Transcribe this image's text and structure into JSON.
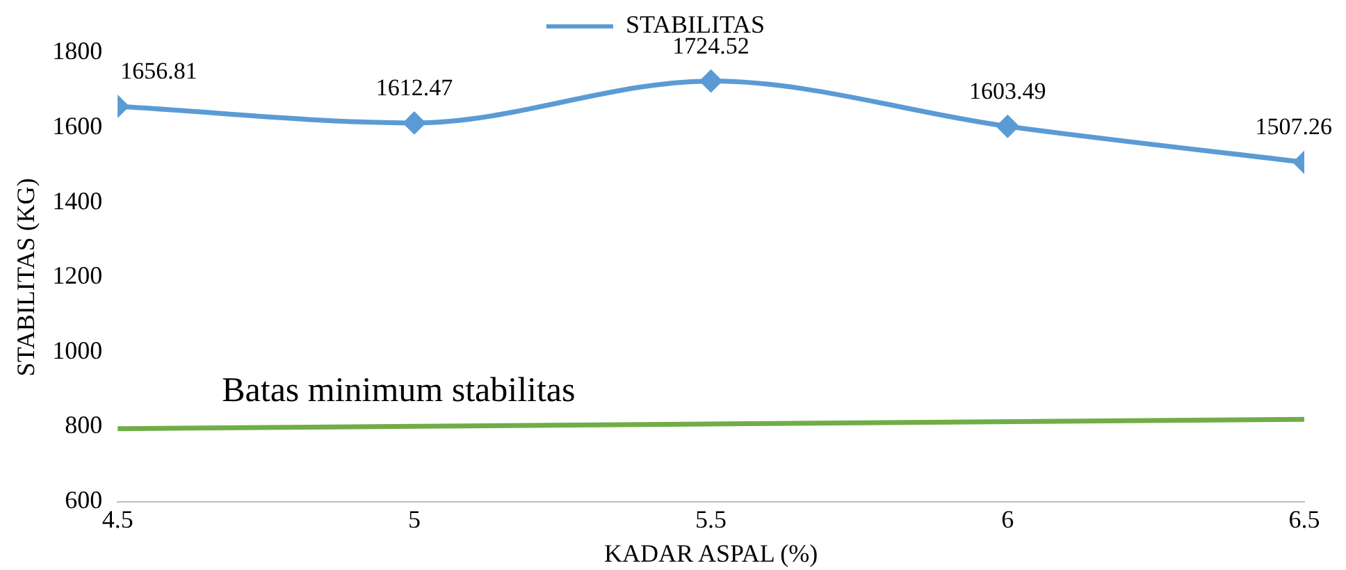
{
  "chart_data": {
    "type": "line",
    "xlabel": "KADAR ASPAL (%)",
    "ylabel": "STABILITAS (KG)",
    "x": [
      4.5,
      5,
      5.5,
      6,
      6.5
    ],
    "series": [
      {
        "name": "STABILITAS",
        "color": "#5b9bd5",
        "values": [
          1656.81,
          1612.47,
          1724.52,
          1603.49,
          1507.26
        ]
      },
      {
        "name": "Batas minimum stabilitas",
        "color": "#70ad47",
        "x": [
          4.5,
          6.5
        ],
        "values": [
          795,
          820
        ],
        "marker": "none",
        "data_labels": false
      }
    ],
    "xlim": [
      4.5,
      6.5
    ],
    "xticks": [
      4.5,
      5,
      5.5,
      6,
      6.5
    ],
    "ylim": [
      600,
      1800
    ],
    "yticks": [
      600,
      800,
      1000,
      1200,
      1400,
      1600,
      1800
    ],
    "grid": false,
    "legend": "top",
    "marker": "diamond",
    "data_labels": true
  }
}
